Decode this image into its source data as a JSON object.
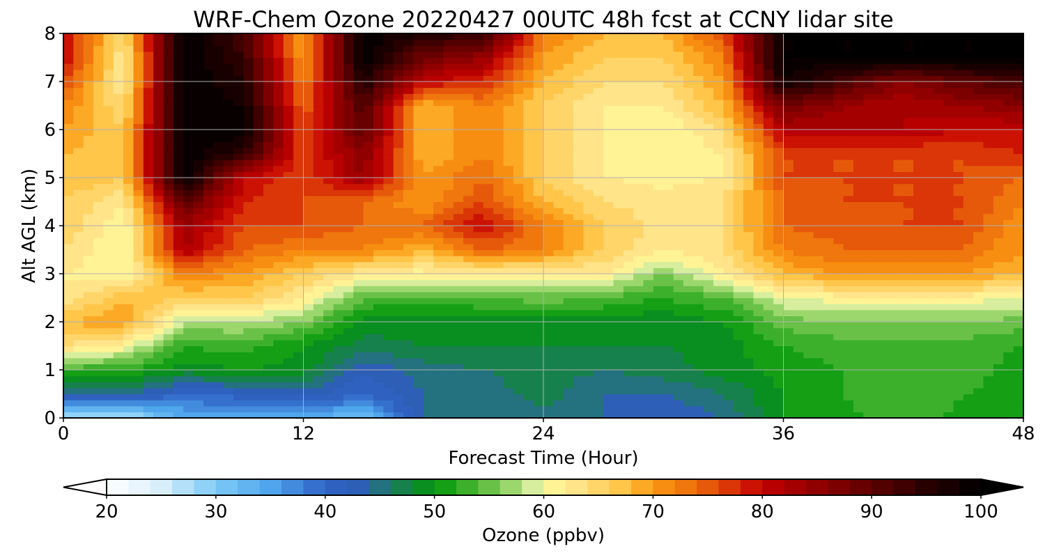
{
  "chart_data": {
    "type": "heatmap",
    "title": "WRF-Chem Ozone  20220427 00UTC 48h fcst at CCNY lidar site",
    "xlabel": "Forecast Time (Hour)",
    "ylabel": "Alt AGL (km)",
    "xlim": [
      0,
      48
    ],
    "ylim": [
      0,
      8
    ],
    "xticks": [
      0,
      12,
      24,
      36,
      48
    ],
    "yticks": [
      0,
      1,
      2,
      3,
      4,
      5,
      6,
      7,
      8
    ],
    "grid": true,
    "x": [
      0,
      3,
      6,
      9,
      12,
      15,
      18,
      21,
      24,
      27,
      30,
      33,
      36,
      39,
      42,
      45,
      48
    ],
    "y": [
      0,
      0.5,
      1,
      1.5,
      2,
      2.5,
      3,
      3.5,
      4,
      4.5,
      5,
      5.5,
      6,
      6.5,
      7,
      7.5,
      8
    ],
    "z": [
      [
        26,
        26,
        34,
        34,
        34,
        32,
        44,
        44,
        45,
        44,
        42,
        44,
        50,
        51,
        54,
        51,
        51
      ],
      [
        44,
        44,
        40,
        41,
        43,
        40,
        44,
        45,
        47,
        44,
        44,
        46,
        50,
        52,
        54,
        52,
        51
      ],
      [
        53,
        52,
        49,
        50,
        49,
        42,
        45,
        46,
        47,
        46,
        47,
        49,
        51,
        52,
        54,
        53,
        51
      ],
      [
        64,
        61,
        52,
        53,
        50,
        47,
        48,
        48,
        48,
        48,
        48,
        49,
        52,
        53,
        53,
        53,
        52
      ],
      [
        68,
        70,
        58,
        58,
        56,
        49,
        49,
        49,
        49,
        49,
        48,
        50,
        55,
        56,
        56,
        56,
        55
      ],
      [
        62,
        68,
        66,
        66,
        62,
        54,
        53,
        54,
        55,
        54,
        52,
        54,
        60,
        61,
        61,
        61,
        60
      ],
      [
        62,
        60,
        72,
        70,
        66,
        62,
        61,
        62,
        61,
        62,
        56,
        62,
        68,
        70,
        70,
        70,
        68
      ],
      [
        64,
        60,
        82,
        74,
        72,
        72,
        68,
        74,
        72,
        66,
        62,
        64,
        72,
        74,
        74,
        74,
        70
      ],
      [
        66,
        60,
        84,
        76,
        76,
        74,
        74,
        80,
        72,
        66,
        63,
        64,
        74,
        75,
        76,
        76,
        70
      ],
      [
        66,
        62,
        90,
        78,
        76,
        74,
        70,
        76,
        68,
        64,
        63,
        64,
        74,
        76,
        76,
        76,
        72
      ],
      [
        68,
        66,
        100,
        80,
        76,
        84,
        70,
        74,
        66,
        62,
        61,
        62,
        76,
        76,
        76,
        76,
        74
      ],
      [
        68,
        66,
        100,
        94,
        76,
        86,
        68,
        72,
        66,
        62,
        60,
        62,
        76,
        76,
        76,
        76,
        78
      ],
      [
        70,
        66,
        100,
        100,
        76,
        90,
        68,
        72,
        66,
        62,
        60,
        64,
        82,
        82,
        82,
        80,
        80
      ],
      [
        72,
        64,
        100,
        98,
        74,
        92,
        68,
        72,
        66,
        62,
        62,
        68,
        88,
        84,
        82,
        84,
        86
      ],
      [
        76,
        62,
        100,
        96,
        72,
        96,
        80,
        78,
        68,
        64,
        64,
        70,
        98,
        92,
        86,
        90,
        92
      ],
      [
        80,
        62,
        100,
        94,
        70,
        100,
        88,
        84,
        70,
        66,
        66,
        72,
        100,
        100,
        100,
        100,
        100
      ],
      [
        80,
        64,
        100,
        92,
        70,
        100,
        96,
        94,
        72,
        68,
        68,
        76,
        100,
        100,
        100,
        100,
        100
      ]
    ],
    "colorbar": {
      "label": "Ozone  (ppbv)",
      "min": 20,
      "max": 100,
      "ticks": [
        20,
        30,
        40,
        50,
        60,
        70,
        80,
        90,
        100
      ],
      "extend": "both",
      "stops": [
        {
          "value": 20,
          "color": "#ffffff"
        },
        {
          "value": 25,
          "color": "#d8eefb"
        },
        {
          "value": 30,
          "color": "#7dcaf6"
        },
        {
          "value": 35,
          "color": "#4fa6ec"
        },
        {
          "value": 40,
          "color": "#2f62c6"
        },
        {
          "value": 43,
          "color": "#2e5fb7"
        },
        {
          "value": 46,
          "color": "#1f7a63"
        },
        {
          "value": 50,
          "color": "#00960a"
        },
        {
          "value": 53,
          "color": "#3cb02a"
        },
        {
          "value": 56,
          "color": "#7fcb55"
        },
        {
          "value": 59,
          "color": "#d6ee9e"
        },
        {
          "value": 60,
          "color": "#fffb9b"
        },
        {
          "value": 63,
          "color": "#ffe48a"
        },
        {
          "value": 67,
          "color": "#ffc64a"
        },
        {
          "value": 70,
          "color": "#fb9a12"
        },
        {
          "value": 74,
          "color": "#ec6a0c"
        },
        {
          "value": 78,
          "color": "#d42406"
        },
        {
          "value": 80,
          "color": "#c20000"
        },
        {
          "value": 85,
          "color": "#910000"
        },
        {
          "value": 90,
          "color": "#5e0000"
        },
        {
          "value": 95,
          "color": "#280000"
        },
        {
          "value": 100,
          "color": "#000000"
        }
      ]
    }
  }
}
